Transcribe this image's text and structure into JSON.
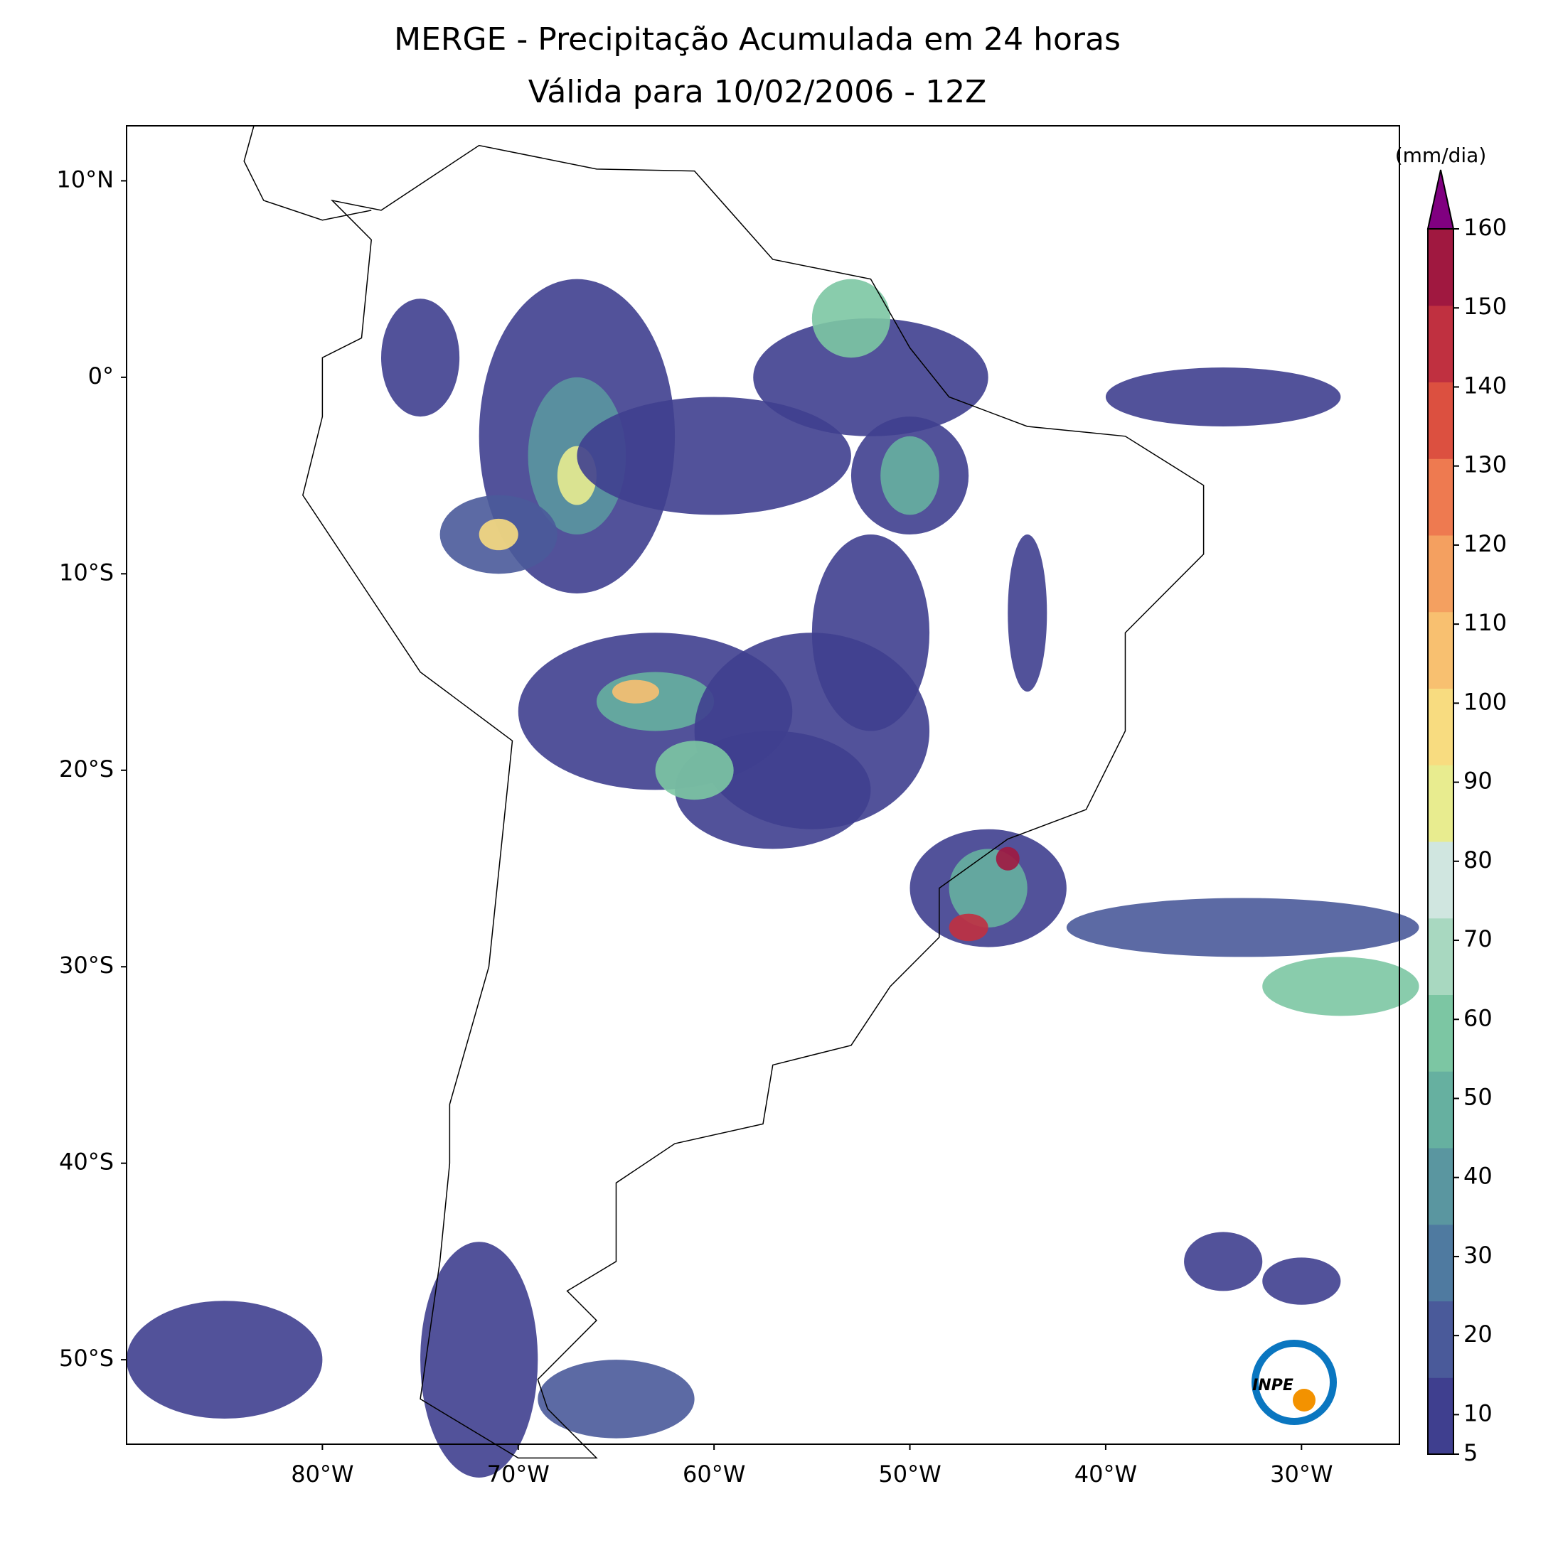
{
  "chart_data": {
    "type": "map",
    "title": "MERGE - Precipitação Acumulada em 24 horas",
    "subtitle": "Válida para 10/02/2006 - 12Z",
    "xlim": [
      -90,
      -25
    ],
    "ylim": [
      -54.3,
      12.8
    ],
    "xticks": [
      {
        "value": -80,
        "label": "80°W"
      },
      {
        "value": -70,
        "label": "70°W"
      },
      {
        "value": -60,
        "label": "60°W"
      },
      {
        "value": -50,
        "label": "50°W"
      },
      {
        "value": -40,
        "label": "40°W"
      },
      {
        "value": -30,
        "label": "30°W"
      }
    ],
    "yticks": [
      {
        "value": 10,
        "label": "10°N"
      },
      {
        "value": 0,
        "label": "0°"
      },
      {
        "value": -10,
        "label": "10°S"
      },
      {
        "value": -20,
        "label": "20°S"
      },
      {
        "value": -30,
        "label": "30°S"
      },
      {
        "value": -40,
        "label": "40°S"
      },
      {
        "value": -50,
        "label": "50°S"
      }
    ],
    "colorbar": {
      "label": "(mm/dia)",
      "lim": [
        5,
        160
      ],
      "ticks": [
        5,
        10,
        20,
        30,
        40,
        50,
        60,
        70,
        80,
        90,
        100,
        110,
        120,
        130,
        140,
        150,
        160
      ],
      "colors": [
        "#3f3f8f",
        "#4a5a9a",
        "#4f7aa0",
        "#5a96a0",
        "#66b0a0",
        "#7cc6a3",
        "#a8d8c0",
        "#d0e6e0",
        "#e8ec8f",
        "#f8dc80",
        "#f8c070",
        "#f4a060",
        "#ee7a50",
        "#dc5040",
        "#c03040",
        "#a01840"
      ],
      "extend_color": "#800080"
    }
  },
  "logo": "INPE"
}
